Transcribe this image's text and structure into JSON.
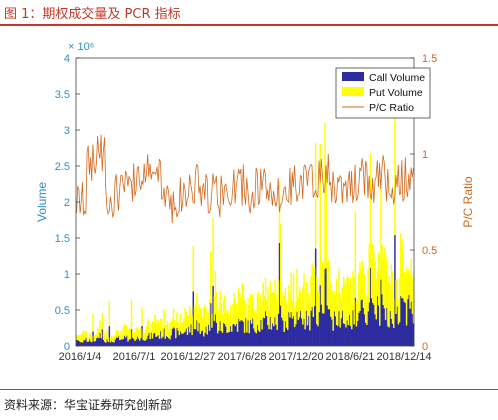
{
  "figure_title": "图 1：期权成交量及 PCR 指标",
  "source_note": "资料来源：华宝证券研究创新部",
  "chart_data": {
    "type": "bar",
    "stacked": true,
    "x_labels": [
      "2016/1/4",
      "2016/7/1",
      "2016/12/27",
      "2017/6/28",
      "2017/12/20",
      "2018/6/21",
      "2018/12/14"
    ],
    "y_left": {
      "label": "Volume",
      "ticks": [
        "0",
        "0.5",
        "1",
        "1.5",
        "2",
        "2.5",
        "3",
        "3.5",
        "4"
      ],
      "exponent": "× 10⁶",
      "range": [
        0,
        4
      ],
      "color": "#2e8fc8"
    },
    "y_right": {
      "label": "P/C Ratio",
      "ticks": [
        "0",
        "0.5",
        "1",
        "1.5"
      ],
      "range": [
        0,
        1.5
      ],
      "color": "#d2691e"
    },
    "legend": {
      "placement": "top-right",
      "entries": [
        "Call Volume",
        "Put Volume",
        "P/C Ratio"
      ]
    },
    "series": [
      {
        "name": "Call Volume",
        "color": "#2c2ca0",
        "axis": "left",
        "monthly_approx_millions": [
          0.08,
          0.07,
          0.09,
          0.08,
          0.1,
          0.1,
          0.12,
          0.13,
          0.15,
          0.17,
          0.18,
          0.2,
          0.25,
          0.24,
          0.26,
          0.25,
          0.28,
          0.3,
          0.28,
          0.32,
          0.34,
          0.32,
          0.33,
          0.35,
          0.38,
          0.4,
          0.42,
          0.38,
          0.4,
          0.42,
          0.45,
          0.48,
          0.5,
          0.45,
          0.48,
          0.52
        ]
      },
      {
        "name": "Put Volume",
        "color": "#ffff00",
        "axis": "left",
        "monthly_approx_millions": [
          0.1,
          0.09,
          0.1,
          0.1,
          0.12,
          0.12,
          0.14,
          0.15,
          0.18,
          0.2,
          0.2,
          0.24,
          0.3,
          0.28,
          0.3,
          0.3,
          0.33,
          0.36,
          0.32,
          0.38,
          0.4,
          0.38,
          0.4,
          0.42,
          0.45,
          0.48,
          0.5,
          0.46,
          0.48,
          0.5,
          0.55,
          0.58,
          0.6,
          0.55,
          0.58,
          0.62
        ]
      },
      {
        "name": "P/C Ratio",
        "color": "#d2691e",
        "axis": "right",
        "type": "line",
        "monthly_approx": [
          0.75,
          0.95,
          1.0,
          0.78,
          0.8,
          0.82,
          0.85,
          0.9,
          0.88,
          0.8,
          0.75,
          0.78,
          0.85,
          0.82,
          0.8,
          0.78,
          0.82,
          0.84,
          0.8,
          0.83,
          0.8,
          0.78,
          0.82,
          0.86,
          0.85,
          0.88,
          0.9,
          0.84,
          0.8,
          0.84,
          0.88,
          0.85,
          0.9,
          0.84,
          0.86,
          0.88
        ]
      }
    ]
  }
}
